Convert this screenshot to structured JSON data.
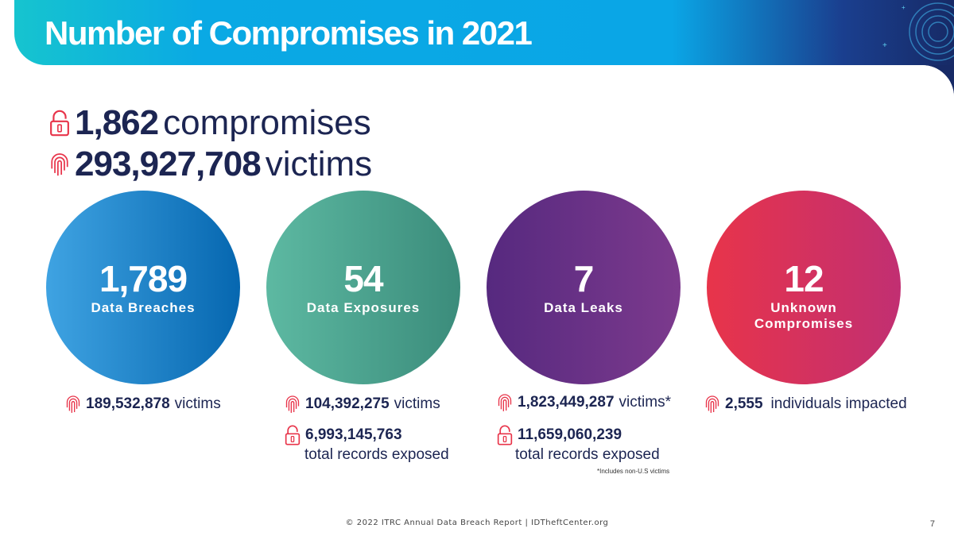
{
  "title": "Number of Compromises in 2021",
  "summary": {
    "compromises_value": "1,862",
    "compromises_label": "compromises",
    "victims_value": "293,927,708",
    "victims_label": "victims"
  },
  "categories": [
    {
      "value": "1,789",
      "label": "Data Breaches",
      "victims": "189,532,878",
      "victims_label": "victims",
      "color_from": "#3fa3e2",
      "color_to": "#0667b0"
    },
    {
      "value": "54",
      "label": "Data Exposures",
      "victims": "104,392,275",
      "victims_label": "victims",
      "records": "6,993,145,763",
      "records_label": "total records exposed",
      "color_from": "#5db9a2",
      "color_to": "#3b8c7b"
    },
    {
      "value": "7",
      "label": "Data Leaks",
      "victims": "1,823,449,287",
      "victims_label": "victims*",
      "records": "11,659,060,239",
      "records_label": "total records exposed",
      "note": "*Includes non-U.S victims",
      "color_from": "#56297f",
      "color_to": "#7c3a8d"
    },
    {
      "value": "12",
      "label": "Unknown",
      "label2": "Compromises",
      "victims": "2,555",
      "victims_label": "individuals impacted",
      "color_from": "#e8344a",
      "color_to": "#c12f72"
    }
  ],
  "footer": "© 2022 ITRC Annual Data Breach Report  |  IDTheftCenter.org",
  "page_number": "7",
  "icon_color": "#e8344a"
}
